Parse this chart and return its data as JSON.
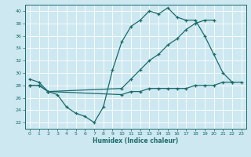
{
  "title": "",
  "xlabel": "Humidex (Indice chaleur)",
  "bg_color": "#cde8f0",
  "line_color": "#1a6b6b",
  "grid_color": "#ffffff",
  "xlim": [
    -0.5,
    23.5
  ],
  "ylim": [
    21,
    41
  ],
  "yticks": [
    22,
    24,
    26,
    28,
    30,
    32,
    34,
    36,
    38,
    40
  ],
  "xticks": [
    0,
    1,
    2,
    3,
    4,
    5,
    6,
    7,
    8,
    9,
    10,
    11,
    12,
    13,
    14,
    15,
    16,
    17,
    18,
    19,
    20,
    21,
    22,
    23
  ],
  "curve1_x": [
    0,
    1,
    2,
    3,
    4,
    5,
    6,
    7,
    8,
    9,
    10,
    11,
    12,
    13,
    14,
    15,
    16,
    17,
    18,
    19,
    20,
    21,
    22
  ],
  "curve1_y": [
    29.0,
    28.5,
    27.0,
    26.5,
    24.5,
    23.5,
    23.0,
    22.0,
    24.5,
    30.5,
    35.0,
    37.5,
    38.5,
    40.0,
    39.5,
    40.5,
    39.0,
    38.5,
    38.5,
    36.0,
    33.0,
    30.0,
    28.5
  ],
  "curve2_x": [
    0,
    1,
    2,
    10,
    11,
    12,
    13,
    14,
    15,
    16,
    17,
    18,
    19,
    20,
    21,
    22,
    23
  ],
  "curve2_y": [
    28.0,
    28.0,
    27.0,
    26.5,
    27.0,
    27.0,
    27.5,
    27.5,
    27.5,
    27.5,
    27.5,
    28.0,
    28.0,
    28.0,
    28.5,
    28.5,
    28.5
  ],
  "curve3_x": [
    0,
    1,
    2,
    10,
    11,
    12,
    13,
    14,
    15,
    16,
    17,
    18,
    19,
    20
  ],
  "curve3_y": [
    28.0,
    28.0,
    27.0,
    27.5,
    29.0,
    30.5,
    32.0,
    33.0,
    34.5,
    35.5,
    37.0,
    38.0,
    38.5,
    38.5
  ]
}
